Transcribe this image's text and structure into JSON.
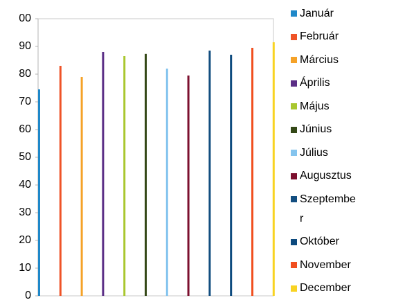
{
  "chart_data": {
    "type": "bar",
    "series": [
      {
        "name": "Január",
        "color": "#1f88c9",
        "values": [
          74.5
        ]
      },
      {
        "name": "Február",
        "color": "#ef5327",
        "values": [
          83
        ]
      },
      {
        "name": "Március",
        "color": "#f5a228",
        "values": [
          79
        ]
      },
      {
        "name": "Április",
        "color": "#5b2e86",
        "values": [
          88
        ]
      },
      {
        "name": "Május",
        "color": "#a9c72f",
        "values": [
          86.5
        ]
      },
      {
        "name": "Június",
        "color": "#344817",
        "values": [
          87.3
        ]
      },
      {
        "name": "Július",
        "color": "#84c4ee",
        "values": [
          82
        ]
      },
      {
        "name": "Augusztus",
        "color": "#7c0f2e",
        "values": [
          79.5
        ]
      },
      {
        "name": "Szeptember",
        "color": "#134e80",
        "values": [
          88.5
        ]
      },
      {
        "name": "Október",
        "color": "#0d4a7e",
        "values": [
          87
        ]
      },
      {
        "name": "November",
        "color": "#f14f1f",
        "values": [
          89.5
        ]
      },
      {
        "name": "December",
        "color": "#f8d322",
        "values": [
          91.5
        ]
      }
    ],
    "ylim": [
      0,
      100
    ],
    "yticks": [
      0,
      10,
      20,
      30,
      40,
      50,
      60,
      70,
      80,
      90,
      {
        "value": 100,
        "label": "00"
      }
    ],
    "grid": false
  }
}
